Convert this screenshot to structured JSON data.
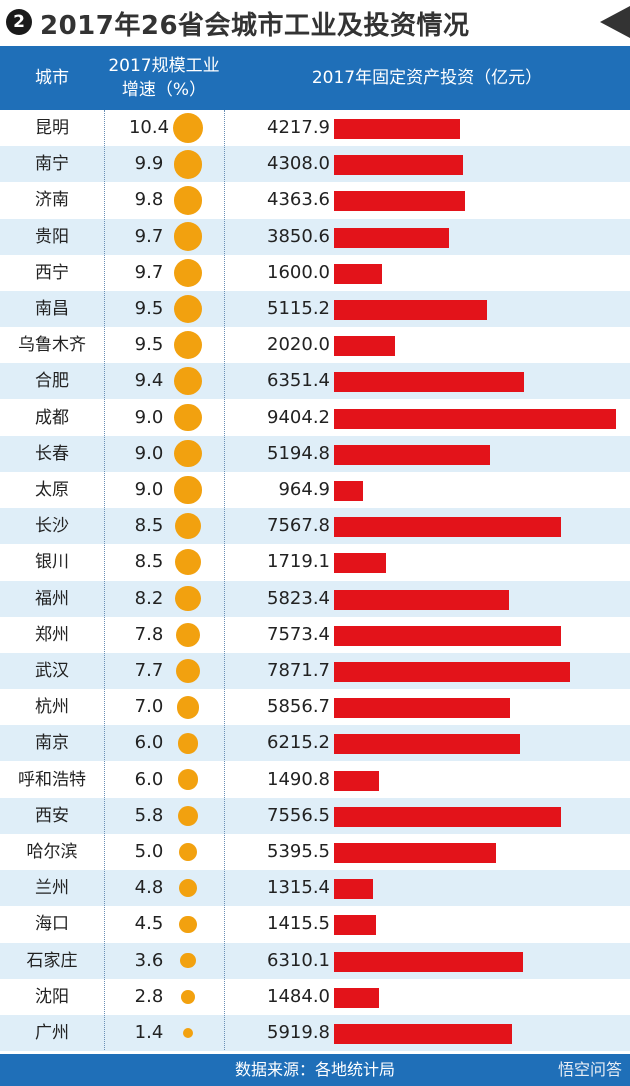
{
  "title": {
    "badge": "2",
    "text": "2017年26省会城市工业及投资情况"
  },
  "header": {
    "city": "城市",
    "growth": "2017规模工业增速（%）",
    "invest": "2017年固定资产投资（亿元）"
  },
  "colors": {
    "header_bg": "#1f6fb8",
    "bar": "#e3131a",
    "dot": "#f2a10f",
    "alt_row": "#dfeef8"
  },
  "chart_data": {
    "type": "table",
    "columns": [
      "城市",
      "2017规模工业增速（%）",
      "2017年固定资产投资（亿元）"
    ],
    "bar_max": 9404.2,
    "rows": [
      {
        "city": "昆明",
        "growth": "10.4",
        "invest": "4217.9"
      },
      {
        "city": "南宁",
        "growth": "9.9",
        "invest": "4308.0"
      },
      {
        "city": "济南",
        "growth": "9.8",
        "invest": "4363.6"
      },
      {
        "city": "贵阳",
        "growth": "9.7",
        "invest": "3850.6"
      },
      {
        "city": "西宁",
        "growth": "9.7",
        "invest": "1600.0"
      },
      {
        "city": "南昌",
        "growth": "9.5",
        "invest": "5115.2"
      },
      {
        "city": "乌鲁木齐",
        "growth": "9.5",
        "invest": "2020.0"
      },
      {
        "city": "合肥",
        "growth": "9.4",
        "invest": "6351.4"
      },
      {
        "city": "成都",
        "growth": "9.0",
        "invest": "9404.2"
      },
      {
        "city": "长春",
        "growth": "9.0",
        "invest": "5194.8"
      },
      {
        "city": "太原",
        "growth": "9.0",
        "invest": "964.9"
      },
      {
        "city": "长沙",
        "growth": "8.5",
        "invest": "7567.8"
      },
      {
        "city": "银川",
        "growth": "8.5",
        "invest": "1719.1"
      },
      {
        "city": "福州",
        "growth": "8.2",
        "invest": "5823.4"
      },
      {
        "city": "郑州",
        "growth": "7.8",
        "invest": "7573.4"
      },
      {
        "city": "武汉",
        "growth": "7.7",
        "invest": "7871.7"
      },
      {
        "city": "杭州",
        "growth": "7.0",
        "invest": "5856.7"
      },
      {
        "city": "南京",
        "growth": "6.0",
        "invest": "6215.2"
      },
      {
        "city": "呼和浩特",
        "growth": "6.0",
        "invest": "1490.8"
      },
      {
        "city": "西安",
        "growth": "5.8",
        "invest": "7556.5"
      },
      {
        "city": "哈尔滨",
        "growth": "5.0",
        "invest": "5395.5"
      },
      {
        "city": "兰州",
        "growth": "4.8",
        "invest": "1315.4"
      },
      {
        "city": "海口",
        "growth": "4.5",
        "invest": "1415.5"
      },
      {
        "city": "石家庄",
        "growth": "3.6",
        "invest": "6310.1"
      },
      {
        "city": "沈阳",
        "growth": "2.8",
        "invest": "1484.0"
      },
      {
        "city": "广州",
        "growth": "1.4",
        "invest": "5919.8"
      }
    ]
  },
  "footer": {
    "source": "数据来源：各地统计局",
    "watermark": "悟空问答"
  }
}
